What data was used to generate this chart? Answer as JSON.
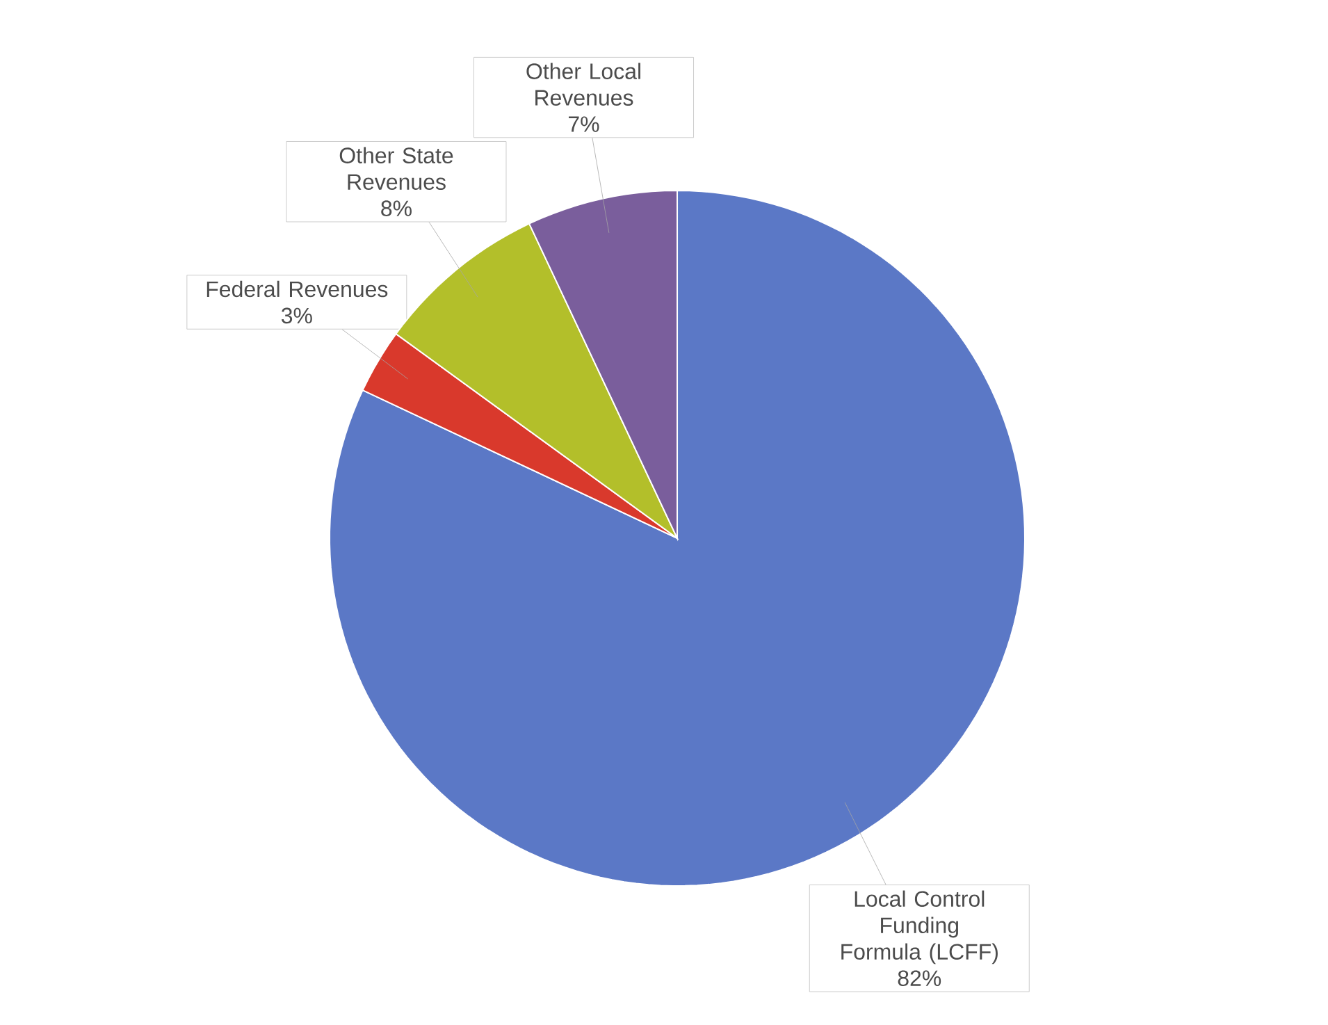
{
  "chart_data": {
    "type": "pie",
    "categories": [
      "Local Control Funding Formula (LCFF)",
      "Federal Revenues",
      "Other State Revenues",
      "Other Local Revenues"
    ],
    "values": [
      82,
      3,
      8,
      7
    ],
    "value_labels": [
      "82%",
      "3%",
      "8%",
      "7%"
    ],
    "colors": [
      "#5b78c6",
      "#d9392c",
      "#b3bf2a",
      "#7a5e9c"
    ]
  }
}
